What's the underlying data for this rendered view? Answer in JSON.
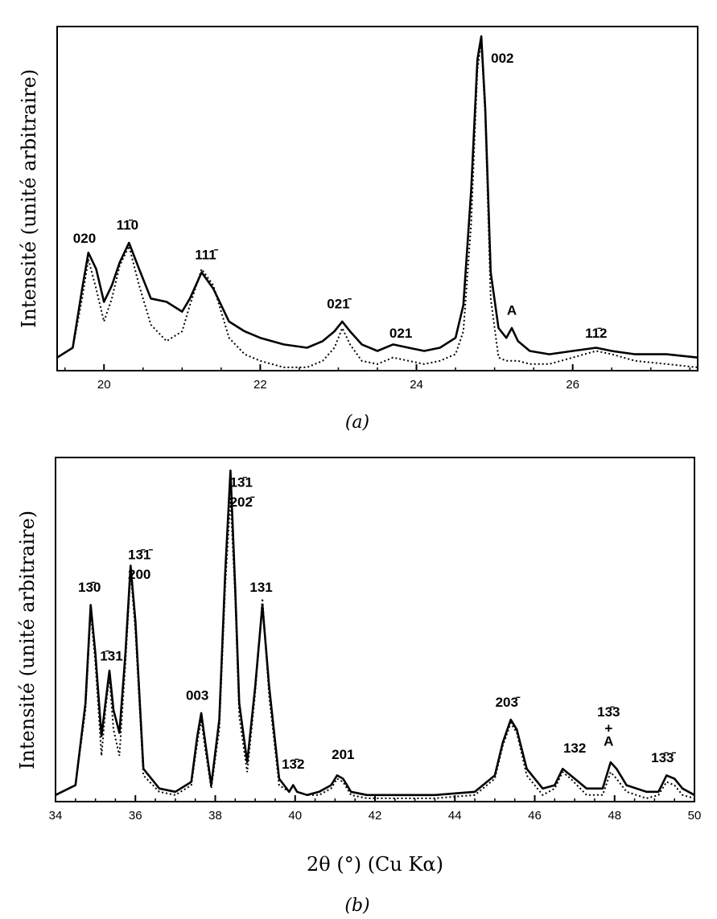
{
  "chart_data": [
    {
      "type": "line",
      "caption": "(a)",
      "xlabel": "",
      "ylabel": "Intensité (unité arbitraire)",
      "xlim": [
        19.4,
        27.6
      ],
      "ylim": [
        0,
        1.05
      ],
      "xticks": [
        20,
        22,
        24,
        26
      ],
      "xtick_labels": [
        "20",
        "22",
        "24",
        "26"
      ],
      "grid": false,
      "series": [
        {
          "style": "solid",
          "x": [
            19.4,
            19.6,
            19.72,
            19.8,
            19.9,
            20.0,
            20.1,
            20.2,
            20.32,
            20.45,
            20.6,
            20.8,
            21.0,
            21.1,
            21.25,
            21.4,
            21.6,
            21.8,
            22.0,
            22.3,
            22.6,
            22.8,
            22.95,
            23.05,
            23.15,
            23.3,
            23.5,
            23.7,
            23.9,
            24.1,
            24.3,
            24.5,
            24.6,
            24.7,
            24.78,
            24.83,
            24.88,
            24.95,
            25.05,
            25.15,
            25.22,
            25.3,
            25.45,
            25.7,
            26.0,
            26.3,
            26.5,
            26.8,
            27.2,
            27.6
          ],
          "y": [
            0.04,
            0.07,
            0.25,
            0.36,
            0.31,
            0.21,
            0.26,
            0.33,
            0.39,
            0.31,
            0.22,
            0.21,
            0.18,
            0.22,
            0.3,
            0.25,
            0.15,
            0.12,
            0.1,
            0.08,
            0.07,
            0.09,
            0.12,
            0.15,
            0.12,
            0.08,
            0.06,
            0.08,
            0.07,
            0.06,
            0.07,
            0.1,
            0.2,
            0.55,
            0.95,
            1.02,
            0.8,
            0.3,
            0.13,
            0.1,
            0.13,
            0.09,
            0.06,
            0.05,
            0.06,
            0.07,
            0.06,
            0.05,
            0.05,
            0.04
          ]
        },
        {
          "style": "dotted",
          "x": [
            19.4,
            19.6,
            19.72,
            19.8,
            19.9,
            20.0,
            20.1,
            20.2,
            20.32,
            20.45,
            20.6,
            20.8,
            21.0,
            21.1,
            21.25,
            21.4,
            21.6,
            21.8,
            22.0,
            22.3,
            22.6,
            22.8,
            22.95,
            23.05,
            23.15,
            23.3,
            23.5,
            23.7,
            23.9,
            24.1,
            24.3,
            24.5,
            24.6,
            24.7,
            24.78,
            24.83,
            24.88,
            24.95,
            25.05,
            25.15,
            25.22,
            25.3,
            25.45,
            25.7,
            26.0,
            26.3,
            26.5,
            26.8,
            27.2,
            27.6
          ],
          "y": [
            0.04,
            0.07,
            0.22,
            0.34,
            0.25,
            0.15,
            0.22,
            0.32,
            0.38,
            0.26,
            0.14,
            0.09,
            0.12,
            0.2,
            0.31,
            0.26,
            0.1,
            0.05,
            0.03,
            0.01,
            0.01,
            0.03,
            0.07,
            0.13,
            0.08,
            0.03,
            0.02,
            0.04,
            0.03,
            0.02,
            0.03,
            0.05,
            0.12,
            0.45,
            0.92,
            1.0,
            0.78,
            0.22,
            0.04,
            0.03,
            0.03,
            0.03,
            0.02,
            0.02,
            0.04,
            0.06,
            0.05,
            0.03,
            0.02,
            0.01
          ]
        }
      ],
      "annotations": [
        {
          "text": "020",
          "x": 19.75,
          "y": 0.39
        },
        {
          "text": "11̄0",
          "x": 20.3,
          "y": 0.43
        },
        {
          "text": "111̄",
          "x": 21.3,
          "y": 0.34
        },
        {
          "text": "021̄",
          "x": 23.0,
          "y": 0.19
        },
        {
          "text": "021",
          "x": 23.8,
          "y": 0.1
        },
        {
          "text": "002",
          "x": 25.1,
          "y": 0.94
        },
        {
          "text": "A",
          "x": 25.22,
          "y": 0.17
        },
        {
          "text": "11̄2",
          "x": 26.3,
          "y": 0.1
        }
      ]
    },
    {
      "type": "line",
      "caption": "(b)",
      "xlabel": "2θ (°) (Cu Kα)",
      "ylabel": "Intensité (unité arbitraire)",
      "xlim": [
        34,
        50
      ],
      "ylim": [
        0,
        1.05
      ],
      "xticks": [
        34,
        36,
        38,
        40,
        42,
        44,
        46,
        48,
        50
      ],
      "xtick_labels": [
        "34",
        "36",
        "38",
        "40",
        "42",
        "44",
        "46",
        "48",
        "50"
      ],
      "grid": false,
      "series": [
        {
          "style": "solid",
          "x": [
            34.0,
            34.5,
            34.75,
            34.88,
            35.0,
            35.15,
            35.25,
            35.35,
            35.45,
            35.6,
            35.75,
            35.88,
            36.0,
            36.2,
            36.6,
            37.0,
            37.4,
            37.55,
            37.65,
            37.75,
            37.9,
            38.1,
            38.25,
            38.38,
            38.5,
            38.6,
            38.8,
            39.0,
            39.18,
            39.35,
            39.6,
            39.85,
            39.95,
            40.05,
            40.3,
            40.6,
            40.9,
            41.05,
            41.2,
            41.4,
            41.8,
            42.5,
            43.5,
            44.5,
            45.0,
            45.2,
            45.4,
            45.55,
            45.8,
            46.2,
            46.5,
            46.7,
            46.9,
            47.3,
            47.7,
            47.9,
            48.05,
            48.3,
            48.8,
            49.1,
            49.3,
            49.5,
            49.7,
            50.0
          ],
          "y": [
            0.02,
            0.05,
            0.3,
            0.6,
            0.45,
            0.2,
            0.3,
            0.4,
            0.28,
            0.21,
            0.45,
            0.72,
            0.55,
            0.1,
            0.04,
            0.03,
            0.06,
            0.2,
            0.27,
            0.18,
            0.05,
            0.25,
            0.7,
            1.01,
            0.65,
            0.3,
            0.12,
            0.35,
            0.6,
            0.35,
            0.07,
            0.03,
            0.05,
            0.03,
            0.02,
            0.03,
            0.05,
            0.08,
            0.07,
            0.03,
            0.02,
            0.02,
            0.02,
            0.03,
            0.08,
            0.18,
            0.25,
            0.22,
            0.1,
            0.04,
            0.05,
            0.1,
            0.08,
            0.04,
            0.04,
            0.12,
            0.1,
            0.05,
            0.03,
            0.03,
            0.08,
            0.07,
            0.04,
            0.02
          ]
        },
        {
          "style": "dotted",
          "x": [
            34.0,
            34.5,
            34.75,
            34.88,
            35.0,
            35.15,
            35.25,
            35.35,
            35.45,
            35.6,
            35.75,
            35.88,
            36.0,
            36.2,
            36.6,
            37.0,
            37.4,
            37.55,
            37.65,
            37.75,
            37.9,
            38.1,
            38.25,
            38.38,
            38.5,
            38.6,
            38.8,
            39.0,
            39.18,
            39.35,
            39.6,
            39.85,
            39.95,
            40.05,
            40.3,
            40.6,
            40.9,
            41.05,
            41.2,
            41.4,
            41.8,
            42.5,
            43.5,
            44.5,
            45.0,
            45.2,
            45.4,
            45.55,
            45.8,
            46.2,
            46.5,
            46.7,
            46.9,
            47.3,
            47.7,
            47.9,
            48.05,
            48.3,
            48.8,
            49.1,
            49.3,
            49.5,
            49.7,
            50.0
          ],
          "y": [
            0.02,
            0.05,
            0.28,
            0.58,
            0.42,
            0.14,
            0.28,
            0.38,
            0.22,
            0.14,
            0.42,
            0.7,
            0.52,
            0.08,
            0.03,
            0.02,
            0.05,
            0.18,
            0.25,
            0.16,
            0.04,
            0.22,
            0.66,
            0.93,
            0.62,
            0.26,
            0.09,
            0.33,
            0.62,
            0.32,
            0.05,
            0.03,
            0.05,
            0.03,
            0.02,
            0.02,
            0.04,
            0.07,
            0.06,
            0.02,
            0.01,
            0.01,
            0.01,
            0.02,
            0.07,
            0.17,
            0.24,
            0.21,
            0.08,
            0.02,
            0.04,
            0.09,
            0.07,
            0.02,
            0.02,
            0.09,
            0.07,
            0.03,
            0.01,
            0.02,
            0.06,
            0.05,
            0.02,
            0.01
          ]
        }
      ],
      "annotations": [
        {
          "text": "13̄0",
          "x": 34.85,
          "y": 0.64
        },
        {
          "text": "1̄31",
          "x": 35.4,
          "y": 0.43
        },
        {
          "text": "13̄1̄",
          "x": 36.1,
          "y": 0.74
        },
        {
          "text": "200",
          "x": 36.1,
          "y": 0.68
        },
        {
          "text": "003",
          "x": 37.55,
          "y": 0.31
        },
        {
          "text": "13̄1",
          "x": 38.65,
          "y": 0.96
        },
        {
          "text": "202̄",
          "x": 38.65,
          "y": 0.9
        },
        {
          "text": "131",
          "x": 39.15,
          "y": 0.64
        },
        {
          "text": "13̄2",
          "x": 39.95,
          "y": 0.1
        },
        {
          "text": "201",
          "x": 41.2,
          "y": 0.13
        },
        {
          "text": "203̄",
          "x": 45.3,
          "y": 0.29
        },
        {
          "text": "132",
          "x": 47.0,
          "y": 0.15
        },
        {
          "text": "13̄3",
          "x": 47.85,
          "y": 0.26
        },
        {
          "text": "+",
          "x": 47.85,
          "y": 0.21
        },
        {
          "text": "A",
          "x": 47.85,
          "y": 0.17
        },
        {
          "text": "13̄3̄",
          "x": 49.2,
          "y": 0.12
        }
      ]
    }
  ]
}
